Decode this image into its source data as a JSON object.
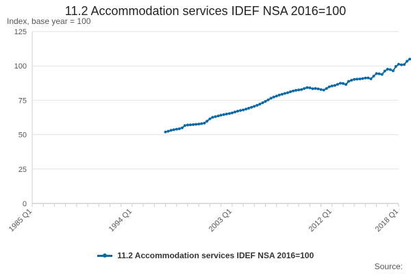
{
  "chart_data": {
    "type": "line",
    "title": "11.2 Accommodation services IDEF NSA 2016=100",
    "ylabel": "Index, base year = 100",
    "ylim": [
      0,
      125
    ],
    "yticks": [
      "0",
      "25",
      "50",
      "75",
      "100",
      "125"
    ],
    "x_range": [
      "1985 Q1",
      "2018 Q1"
    ],
    "xticks": [
      "1985 Q1",
      "1994 Q1",
      "2003 Q1",
      "2012 Q1",
      "2018 Q1"
    ],
    "grid": true,
    "legend_position": "bottom",
    "series": [
      {
        "name": "11.2 Accommodation services IDEF NSA 2016=100",
        "color": "#0b6aa5",
        "start": "1997 Q1",
        "values": [
          52.0,
          52.5,
          53.2,
          53.6,
          54.0,
          54.3,
          55.0,
          56.6,
          57.0,
          57.1,
          57.3,
          57.5,
          57.7,
          58.0,
          58.4,
          59.8,
          61.5,
          62.6,
          63.1,
          63.6,
          64.2,
          64.6,
          65.0,
          65.4,
          65.8,
          66.5,
          67.1,
          67.6,
          68.0,
          68.6,
          69.2,
          69.9,
          70.6,
          71.3,
          72.2,
          73.2,
          74.2,
          75.3,
          76.5,
          77.4,
          78.1,
          78.8,
          79.4,
          80.0,
          80.5,
          81.2,
          81.8,
          82.2,
          82.5,
          82.8,
          83.5,
          84.2,
          84.0,
          83.4,
          83.6,
          83.3,
          82.8,
          82.4,
          83.5,
          84.8,
          85.4,
          85.8,
          86.6,
          87.4,
          87.2,
          86.5,
          88.8,
          89.6,
          90.2,
          90.4,
          90.5,
          90.8,
          91.2,
          91.3,
          90.6,
          92.6,
          94.4,
          94.2,
          93.8,
          96.2,
          97.6,
          97.3,
          96.4,
          99.6,
          101.2,
          100.8,
          101.0,
          103.4,
          105.0,
          104.2,
          103.2
        ]
      }
    ]
  },
  "source_label": "Source:"
}
